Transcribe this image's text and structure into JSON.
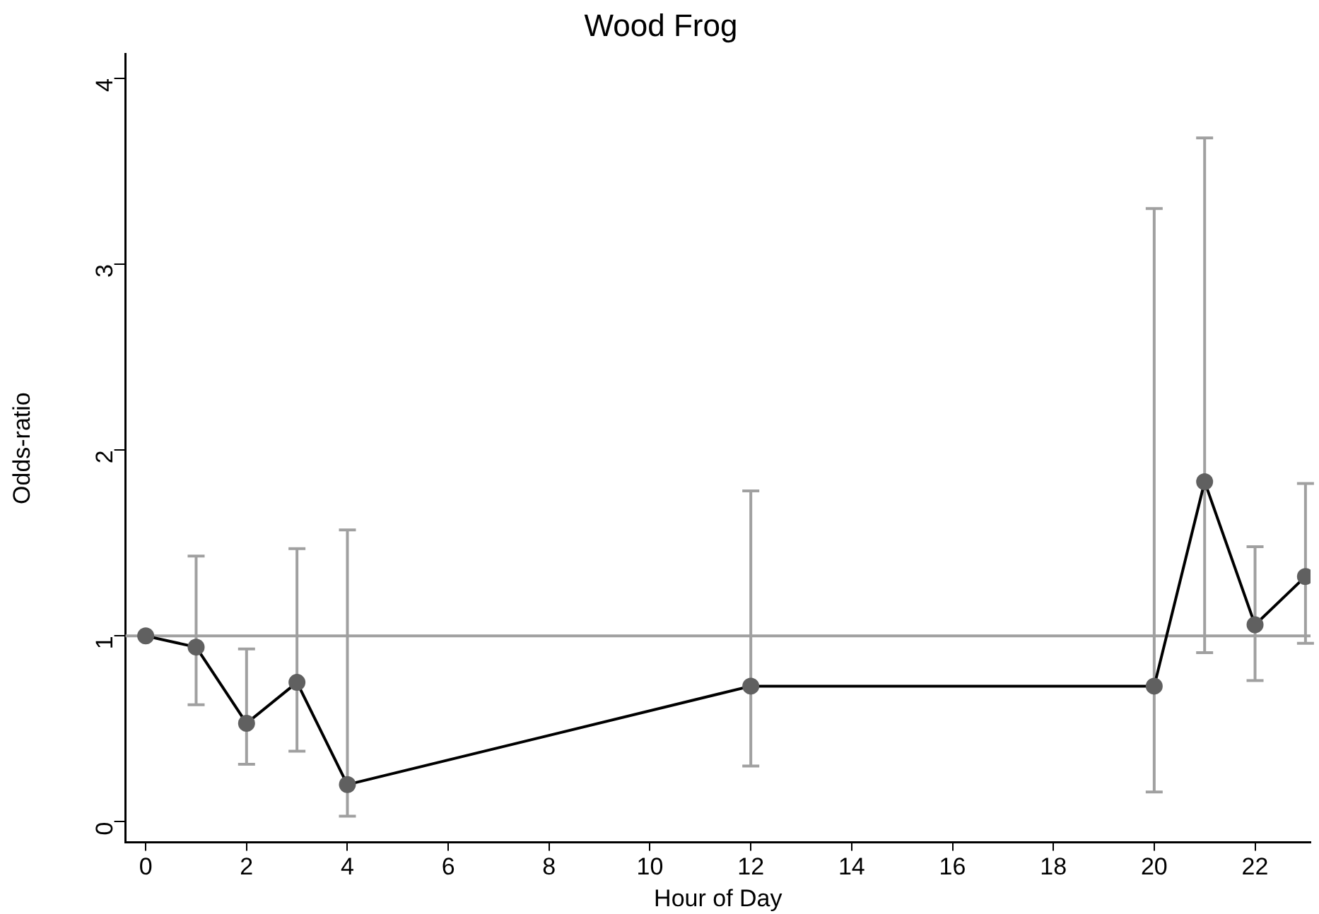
{
  "chart_data": {
    "type": "line",
    "title": "Wood Frog",
    "xlabel": "Hour of Day",
    "ylabel": "Odds-ratio",
    "x": [
      0,
      1,
      2,
      3,
      4,
      12,
      20,
      21,
      22,
      23
    ],
    "series": [
      {
        "color": "#000000",
        "values": [
          1.0,
          0.94,
          0.53,
          0.75,
          0.2,
          0.73,
          0.73,
          1.83,
          1.06,
          1.32
        ],
        "errors": [
          null,
          [
            0.63,
            1.43
          ],
          [
            0.31,
            0.93
          ],
          [
            0.38,
            1.47
          ],
          [
            0.03,
            1.57
          ],
          [
            0.3,
            1.78
          ],
          [
            0.16,
            3.3
          ],
          [
            0.91,
            3.68
          ],
          [
            0.76,
            1.48
          ],
          [
            0.96,
            1.82
          ]
        ]
      }
    ],
    "xlim": [
      -0.4,
      23.1
    ],
    "xticks": [
      0,
      2,
      4,
      6,
      8,
      10,
      12,
      14,
      16,
      18,
      20,
      22
    ],
    "ylim": [
      -0.11,
      4.13
    ],
    "yticks": [
      0,
      1,
      2,
      3,
      4
    ],
    "ref_lines": [
      {
        "axis": "y",
        "value": 1,
        "color": "#a0a0a0"
      }
    ],
    "grid": false,
    "legend": false,
    "marker": "circle",
    "line_style": "solid"
  }
}
